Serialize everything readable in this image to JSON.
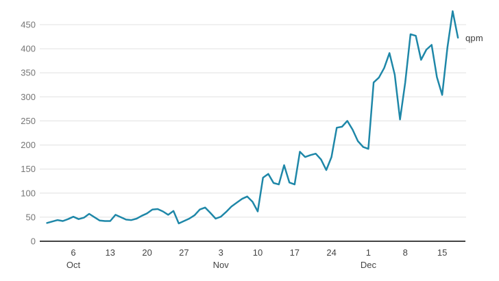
{
  "chart_data": {
    "type": "line",
    "title": "",
    "xlabel": "",
    "ylabel": "",
    "series_label": "qpm",
    "start_date": "Oct 1",
    "end_date": "Dec 18",
    "x": [
      "Oct 1",
      "Oct 2",
      "Oct 3",
      "Oct 4",
      "Oct 5",
      "Oct 6",
      "Oct 7",
      "Oct 8",
      "Oct 9",
      "Oct 10",
      "Oct 11",
      "Oct 12",
      "Oct 13",
      "Oct 14",
      "Oct 15",
      "Oct 16",
      "Oct 17",
      "Oct 18",
      "Oct 19",
      "Oct 20",
      "Oct 21",
      "Oct 22",
      "Oct 23",
      "Oct 24",
      "Oct 25",
      "Oct 26",
      "Oct 27",
      "Oct 28",
      "Oct 29",
      "Oct 30",
      "Oct 31",
      "Nov 1",
      "Nov 2",
      "Nov 3",
      "Nov 4",
      "Nov 5",
      "Nov 6",
      "Nov 7",
      "Nov 8",
      "Nov 9",
      "Nov 10",
      "Nov 11",
      "Nov 12",
      "Nov 13",
      "Nov 14",
      "Nov 15",
      "Nov 16",
      "Nov 17",
      "Nov 18",
      "Nov 19",
      "Nov 20",
      "Nov 21",
      "Nov 22",
      "Nov 23",
      "Nov 24",
      "Nov 25",
      "Nov 26",
      "Nov 27",
      "Nov 28",
      "Nov 29",
      "Nov 30",
      "Dec 1",
      "Dec 2",
      "Dec 3",
      "Dec 4",
      "Dec 5",
      "Dec 6",
      "Dec 7",
      "Dec 8",
      "Dec 9",
      "Dec 10",
      "Dec 11",
      "Dec 12",
      "Dec 13",
      "Dec 14",
      "Dec 15",
      "Dec 16",
      "Dec 17",
      "Dec 18"
    ],
    "values": [
      38,
      41,
      44,
      42,
      46,
      51,
      46,
      49,
      57,
      50,
      43,
      42,
      42,
      55,
      50,
      45,
      44,
      47,
      53,
      58,
      66,
      67,
      62,
      55,
      63,
      37,
      42,
      47,
      54,
      66,
      70,
      59,
      47,
      51,
      61,
      72,
      80,
      88,
      93,
      82,
      62,
      132,
      140,
      121,
      118,
      158,
      122,
      118,
      186,
      175,
      179,
      182,
      170,
      148,
      175,
      236,
      238,
      250,
      232,
      208,
      196,
      192,
      330,
      340,
      360,
      391,
      346,
      253,
      330,
      430,
      427,
      377,
      398,
      408,
      341,
      304,
      402,
      478,
      423
    ],
    "ylim": [
      0,
      450
    ],
    "yticks": [
      0,
      50,
      100,
      150,
      200,
      250,
      300,
      350,
      400,
      450
    ],
    "xticks": [
      {
        "i": 5,
        "day": "6",
        "month": "Oct"
      },
      {
        "i": 12,
        "day": "13",
        "month": ""
      },
      {
        "i": 19,
        "day": "20",
        "month": ""
      },
      {
        "i": 26,
        "day": "27",
        "month": ""
      },
      {
        "i": 33,
        "day": "3",
        "month": "Nov"
      },
      {
        "i": 40,
        "day": "10",
        "month": ""
      },
      {
        "i": 47,
        "day": "17",
        "month": ""
      },
      {
        "i": 54,
        "day": "24",
        "month": ""
      },
      {
        "i": 61,
        "day": "1",
        "month": "Dec"
      },
      {
        "i": 68,
        "day": "8",
        "month": ""
      },
      {
        "i": 75,
        "day": "15",
        "month": ""
      }
    ],
    "grid": "horizontal-only",
    "legend_position": "right-of-line-end",
    "colors": {
      "line": "#1e87a8",
      "grid": "#e0e0e0",
      "axis": "#424242",
      "ytick_text": "#757575",
      "xtick_text": "#424242",
      "series_label_text": "#3c3c3c",
      "background": "#ffffff"
    }
  }
}
